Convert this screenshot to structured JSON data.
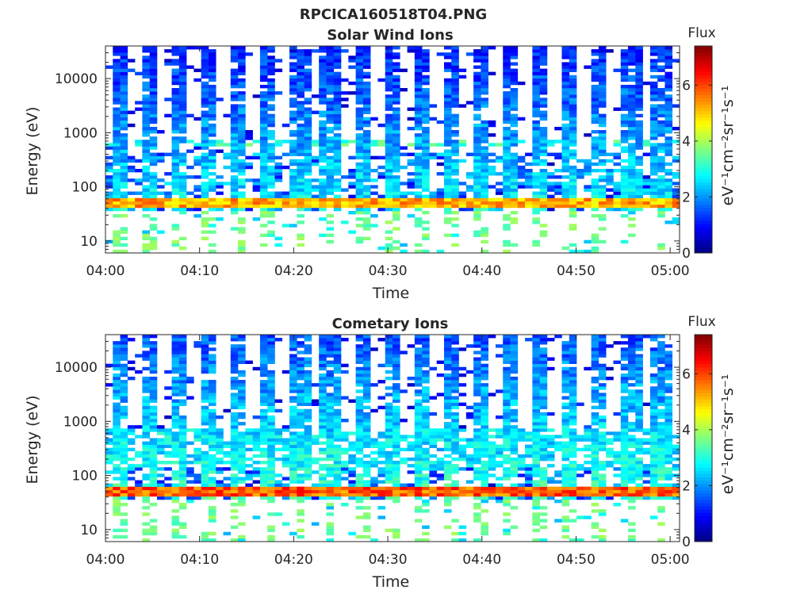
{
  "figure": {
    "title": "RPCICA160518T04.PNG"
  },
  "chart_data": [
    {
      "type": "heatmap",
      "title": "Solar Wind Ions",
      "xlabel": "Time",
      "ylabel": "Energy (eV)",
      "x_range": [
        "04:00",
        "05:01"
      ],
      "x_ticks": [
        "04:00",
        "04:10",
        "04:20",
        "04:30",
        "04:40",
        "04:50",
        "05:00"
      ],
      "y_scale": "log",
      "y_range": [
        6,
        40000
      ],
      "y_ticks": [
        10,
        100,
        1000,
        10000
      ],
      "y_tick_labels": [
        "10",
        "100",
        "1000",
        "10000"
      ],
      "colorbar": {
        "title": "Flux",
        "label": "eV⁻¹cm⁻²sr⁻¹s⁻¹",
        "range": [
          0,
          7.4
        ],
        "ticks": [
          0,
          2,
          4,
          6
        ],
        "tick_labels": [
          "0",
          "2",
          "4",
          "6"
        ],
        "colormap": "jet"
      },
      "pattern": {
        "sweep_period_min": 3.2,
        "sweep_times_min": [
          1.5,
          4.7,
          7.9,
          11.1,
          14.3,
          17.5,
          20.7,
          23.9,
          27.1,
          30.3,
          33.5,
          36.7,
          39.9,
          43.1,
          46.3,
          49.5,
          52.7,
          55.9,
          59.1
        ],
        "persistent_band_eV": [
          40,
          60
        ],
        "persistent_band_flux": 5.2,
        "secondary_band_eV": [
          600,
          750
        ],
        "secondary_band_flux": 3.2,
        "sweep_flux_at_1000eV": 2.0
      }
    },
    {
      "type": "heatmap",
      "title": "Cometary Ions",
      "xlabel": "Time",
      "ylabel": "Energy (eV)",
      "x_range": [
        "04:00",
        "05:01"
      ],
      "x_ticks": [
        "04:00",
        "04:10",
        "04:20",
        "04:30",
        "04:40",
        "04:50",
        "05:00"
      ],
      "y_scale": "log",
      "y_range": [
        6,
        40000
      ],
      "y_ticks": [
        10,
        100,
        1000,
        10000
      ],
      "y_tick_labels": [
        "10",
        "100",
        "1000",
        "10000"
      ],
      "colorbar": {
        "title": "Flux",
        "label": "eV⁻¹cm⁻²sr⁻¹s⁻¹",
        "range": [
          0,
          7.4
        ],
        "ticks": [
          0,
          2,
          4,
          6
        ],
        "tick_labels": [
          "0",
          "2",
          "4",
          "6"
        ],
        "colormap": "jet"
      },
      "pattern": {
        "sweep_period_min": 3.2,
        "sweep_times_min": [
          1.5,
          4.7,
          7.9,
          11.1,
          14.3,
          17.5,
          20.7,
          23.9,
          27.1,
          30.3,
          33.5,
          36.7,
          39.9,
          43.1,
          46.3,
          49.5,
          52.7,
          55.9,
          59.1
        ],
        "persistent_band_eV": [
          40,
          60
        ],
        "persistent_band_flux": 5.8,
        "secondary_band_eV": [
          150,
          700
        ],
        "secondary_band_flux": 2.6,
        "sweep_flux_at_1000eV": 2.4
      }
    }
  ]
}
